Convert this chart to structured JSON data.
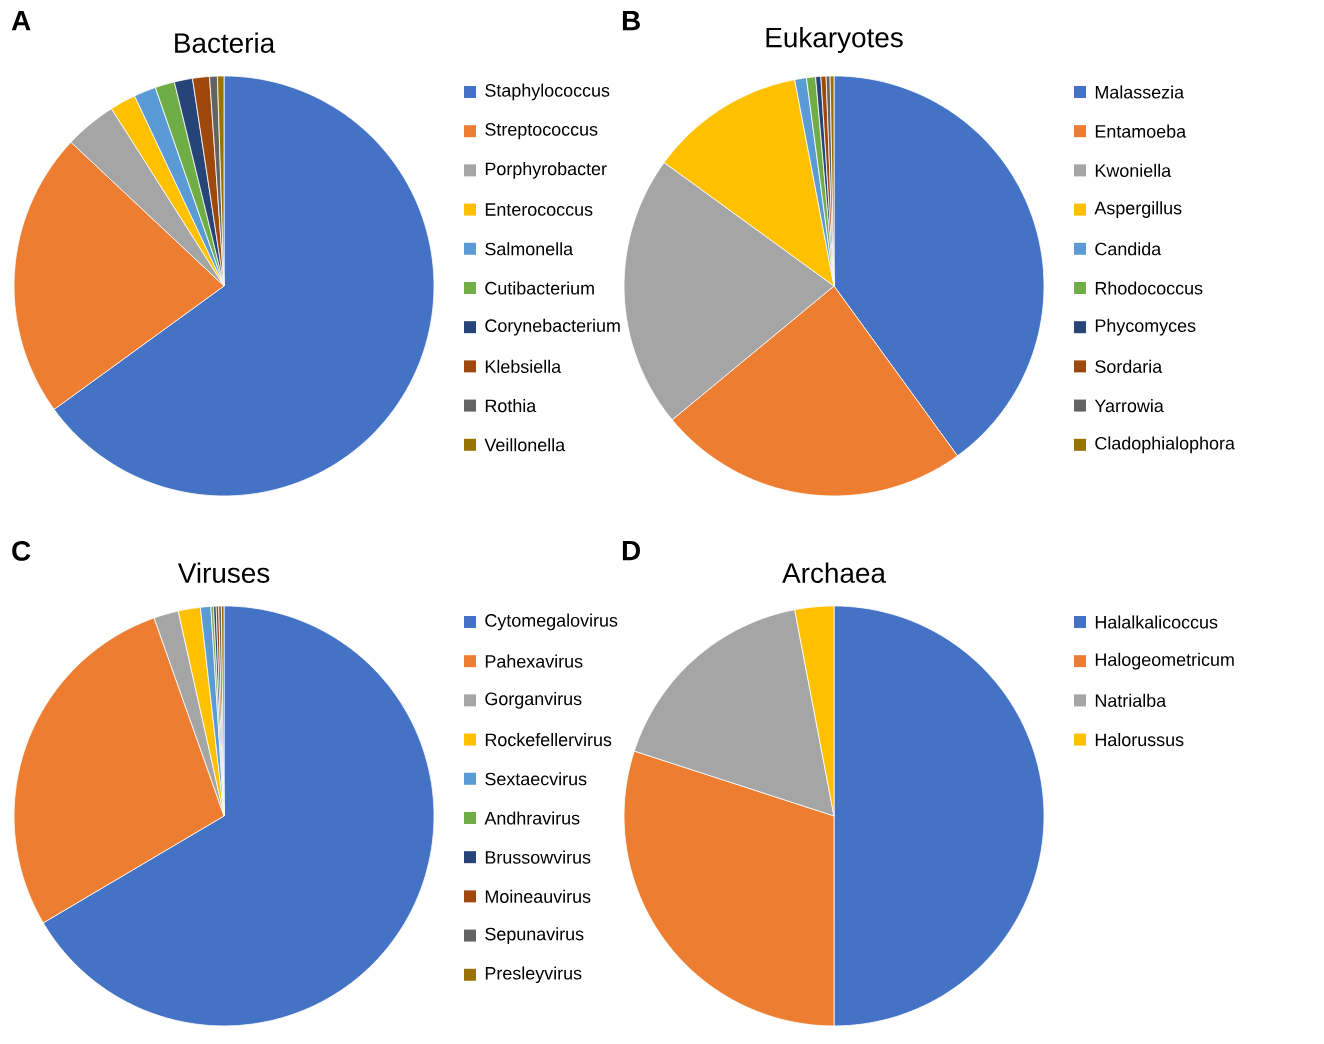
{
  "chart_data": [
    {
      "type": "pie",
      "title": "Bacteria",
      "annotations": [
        "A"
      ],
      "legend": "right",
      "categories": [
        "Staphylococcus",
        "Streptococcus",
        "Porphyrobacter",
        "Enterococcus",
        "Salmonella",
        "Cutibacterium",
        "Corynebacterium",
        "Klebsiella",
        "Rothia",
        "Veillonella"
      ],
      "values": [
        65,
        22,
        4,
        2,
        1.7,
        1.5,
        1.4,
        1.3,
        0.6,
        0.5
      ],
      "colors": [
        "#4472c4",
        "#ed7d31",
        "#a5a5a5",
        "#ffc000",
        "#5b9bd5",
        "#70ad47",
        "#264478",
        "#9e480e",
        "#636363",
        "#997300"
      ]
    },
    {
      "type": "pie",
      "title": "Eukaryotes",
      "annotations": [
        "B"
      ],
      "legend": "right",
      "categories": [
        "Malassezia",
        "Entamoeba",
        "Kwoniella",
        "Aspergillus",
        "Candida",
        "Rhodococcus",
        "Phycomyces",
        "Sordaria",
        "Yarrowia",
        "Cladophialophora"
      ],
      "values": [
        40,
        24,
        21,
        12,
        0.9,
        0.7,
        0.4,
        0.4,
        0.3,
        0.3
      ],
      "colors": [
        "#4472c4",
        "#ed7d31",
        "#a5a5a5",
        "#ffc000",
        "#5b9bd5",
        "#70ad47",
        "#264478",
        "#9e480e",
        "#636363",
        "#997300"
      ]
    },
    {
      "type": "pie",
      "title": "Viruses",
      "annotations": [
        "C"
      ],
      "legend": "right",
      "categories": [
        "Cytomegalovirus",
        "Pahexavirus",
        "Gorganvirus",
        "Rockefellervirus",
        "Sextaecvirus",
        "Andhravirus",
        "Brussowvirus",
        "Moineauvirus",
        "Sepunavirus",
        "Presleyvirus"
      ],
      "values": [
        66.5,
        28.1,
        1.9,
        1.7,
        0.8,
        0.2,
        0.2,
        0.2,
        0.2,
        0.2
      ],
      "colors": [
        "#4472c4",
        "#ed7d31",
        "#a5a5a5",
        "#ffc000",
        "#5b9bd5",
        "#70ad47",
        "#264478",
        "#9e480e",
        "#636363",
        "#997300"
      ]
    },
    {
      "type": "pie",
      "title": "Archaea",
      "annotations": [
        "D"
      ],
      "legend": "right",
      "categories": [
        "Halalkalicoccus",
        "Halogeometricum",
        "Natrialba",
        "Halorussus"
      ],
      "values": [
        50,
        30,
        17,
        3
      ],
      "colors": [
        "#4472c4",
        "#ed7d31",
        "#a5a5a5",
        "#ffc000"
      ]
    }
  ]
}
